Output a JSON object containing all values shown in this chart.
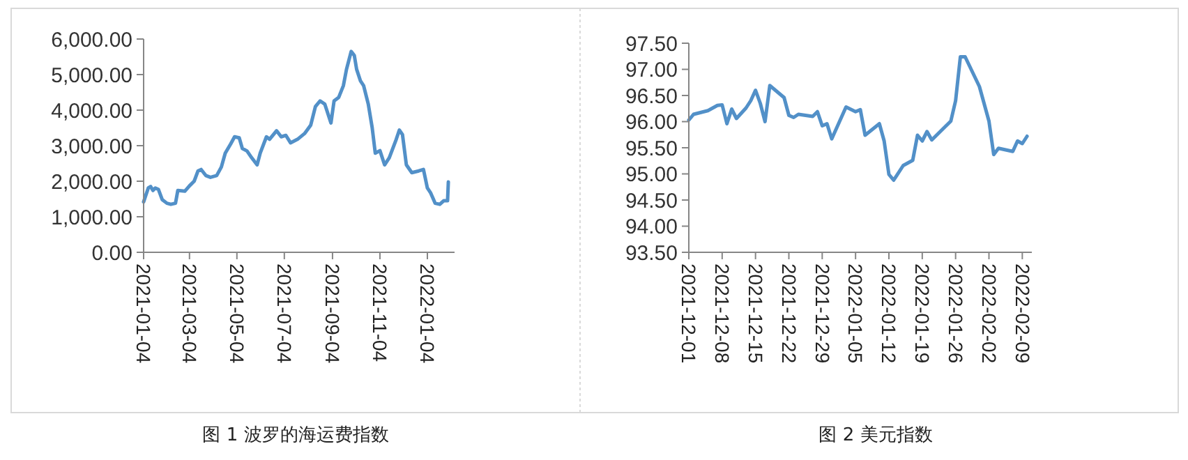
{
  "chart_data": [
    {
      "type": "line",
      "title": "图 1 波罗的海运费指数",
      "x": [
        "2021-01-04",
        "2021-01-10",
        "2021-01-13",
        "2021-01-16",
        "2021-01-19",
        "2021-01-23",
        "2021-01-28",
        "2021-02-03",
        "2021-02-08",
        "2021-02-14",
        "2021-02-17",
        "2021-02-26",
        "2021-03-04",
        "2021-03-10",
        "2021-03-15",
        "2021-03-19",
        "2021-03-25",
        "2021-03-31",
        "2021-04-08",
        "2021-04-14",
        "2021-04-19",
        "2021-04-26",
        "2021-05-01",
        "2021-05-07",
        "2021-05-11",
        "2021-05-17",
        "2021-05-23",
        "2021-05-30",
        "2021-06-03",
        "2021-06-11",
        "2021-06-15",
        "2021-06-24",
        "2021-06-30",
        "2021-07-06",
        "2021-07-12",
        "2021-07-21",
        "2021-07-30",
        "2021-08-07",
        "2021-08-13",
        "2021-08-19",
        "2021-08-25",
        "2021-09-02",
        "2021-09-06",
        "2021-09-12",
        "2021-09-18",
        "2021-09-22",
        "2021-09-28",
        "2021-10-02",
        "2021-10-05",
        "2021-10-10",
        "2021-10-14",
        "2021-10-20",
        "2021-10-25",
        "2021-10-29",
        "2021-11-04",
        "2021-11-10",
        "2021-11-16",
        "2021-11-25",
        "2021-11-29",
        "2021-12-03",
        "2021-12-08",
        "2021-12-15",
        "2021-12-24",
        "2021-12-30",
        "2022-01-04",
        "2022-01-08",
        "2022-01-14",
        "2022-01-20",
        "2022-01-25",
        "2022-01-30",
        "2022-01-31"
      ],
      "series": [
        {
          "color": "#5290c8",
          "values": [
            1420,
            1810,
            1850,
            1740,
            1810,
            1770,
            1480,
            1380,
            1350,
            1380,
            1740,
            1720,
            1870,
            2000,
            2290,
            2330,
            2160,
            2110,
            2160,
            2400,
            2790,
            3050,
            3250,
            3220,
            2920,
            2850,
            2660,
            2460,
            2790,
            3250,
            3180,
            3420,
            3250,
            3290,
            3080,
            3180,
            3340,
            3580,
            4100,
            4260,
            4170,
            3640,
            4260,
            4360,
            4690,
            5150,
            5650,
            5540,
            5150,
            4820,
            4690,
            4170,
            3510,
            2790,
            2860,
            2460,
            2660,
            3180,
            3440,
            3310,
            2460,
            2240,
            2290,
            2330,
            1810,
            1680,
            1380,
            1350,
            1450,
            1450,
            1980
          ]
        }
      ],
      "xlim": [
        "2021-01-04",
        "2022-02-08"
      ],
      "xticks": [
        "2021-01-04",
        "2021-03-04",
        "2021-05-04",
        "2021-07-04",
        "2021-09-04",
        "2021-11-04",
        "2022-01-04"
      ],
      "ylim": [
        0,
        6000
      ],
      "yticks": [
        {
          "value": 0,
          "label": "0.00"
        },
        {
          "value": 1000,
          "label": "1,000.00"
        },
        {
          "value": 2000,
          "label": "2,000.00"
        },
        {
          "value": 3000,
          "label": "3,000.00"
        },
        {
          "value": 4000,
          "label": "4,000.00"
        },
        {
          "value": 5000,
          "label": "5,000.00"
        },
        {
          "value": 6000,
          "label": "6,000.00"
        }
      ],
      "grid": false,
      "marker": "none",
      "line_style": "solid"
    },
    {
      "type": "line",
      "title": "图 2 美元指数",
      "x": [
        "2021-12-01",
        "2021-12-02",
        "2021-12-05",
        "2021-12-07",
        "2021-12-08",
        "2021-12-09",
        "2021-12-10",
        "2021-12-11",
        "2021-12-13",
        "2021-12-14",
        "2021-12-15",
        "2021-12-16",
        "2021-12-17",
        "2021-12-18",
        "2021-12-21",
        "2021-12-22",
        "2021-12-23",
        "2021-12-24",
        "2021-12-27",
        "2021-12-28",
        "2021-12-29",
        "2021-12-30",
        "2021-12-31",
        "2022-01-03",
        "2022-01-05",
        "2022-01-06",
        "2022-01-07",
        "2022-01-10",
        "2022-01-11",
        "2022-01-12",
        "2022-01-13",
        "2022-01-15",
        "2022-01-17",
        "2022-01-18",
        "2022-01-19",
        "2022-01-20",
        "2022-01-21",
        "2022-01-25",
        "2022-01-26",
        "2022-01-27",
        "2022-01-28",
        "2022-01-31",
        "2022-02-02",
        "2022-02-03",
        "2022-02-04",
        "2022-02-07",
        "2022-02-08",
        "2022-02-09",
        "2022-02-10"
      ],
      "series": [
        {
          "color": "#5290c8",
          "values": [
            96.03,
            96.14,
            96.21,
            96.31,
            96.32,
            95.96,
            96.24,
            96.06,
            96.26,
            96.4,
            96.6,
            96.35,
            96.0,
            96.69,
            96.46,
            96.12,
            96.08,
            96.14,
            96.1,
            96.19,
            95.92,
            95.96,
            95.67,
            96.28,
            96.19,
            96.23,
            95.74,
            95.96,
            95.63,
            94.99,
            94.88,
            95.16,
            95.26,
            95.74,
            95.63,
            95.81,
            95.65,
            96.01,
            96.4,
            97.24,
            97.24,
            96.67,
            96.01,
            95.37,
            95.49,
            95.43,
            95.63,
            95.58,
            95.72
          ]
        }
      ],
      "xlim": [
        "2021-12-01",
        "2022-02-11"
      ],
      "xticks": [
        "2021-12-01",
        "2021-12-08",
        "2021-12-15",
        "2021-12-22",
        "2021-12-29",
        "2022-01-05",
        "2022-01-12",
        "2022-01-19",
        "2022-01-26",
        "2022-02-02",
        "2022-02-09"
      ],
      "ylim": [
        93.5,
        97.5
      ],
      "yticks": [
        {
          "value": 93.5,
          "label": "93.50"
        },
        {
          "value": 94,
          "label": "94.00"
        },
        {
          "value": 94.5,
          "label": "94.50"
        },
        {
          "value": 95,
          "label": "95.00"
        },
        {
          "value": 95.5,
          "label": "95.50"
        },
        {
          "value": 96,
          "label": "96.00"
        },
        {
          "value": 96.5,
          "label": "96.50"
        },
        {
          "value": 97,
          "label": "97.00"
        },
        {
          "value": 97.5,
          "label": "97.50"
        }
      ],
      "grid": false,
      "marker": "none",
      "line_style": "solid"
    }
  ]
}
